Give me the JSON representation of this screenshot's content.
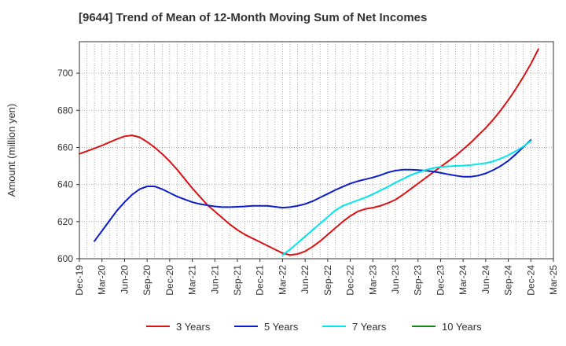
{
  "chart_data": {
    "type": "line",
    "title": "[9644]  Trend of Mean of 12-Month Moving Sum of Net Incomes",
    "xlabel": "",
    "ylabel": "Amount (million yen)",
    "ylim": [
      600,
      717
    ],
    "yticks": [
      600,
      620,
      640,
      660,
      680,
      700
    ],
    "xlim": [
      "2019-12",
      "2025-03"
    ],
    "xticks": [
      "Dec-19",
      "Mar-20",
      "Jun-20",
      "Sep-20",
      "Dec-20",
      "Mar-21",
      "Jun-21",
      "Sep-21",
      "Dec-21",
      "Mar-22",
      "Jun-22",
      "Sep-22",
      "Dec-22",
      "Mar-23",
      "Jun-23",
      "Sep-23",
      "Dec-23",
      "Mar-24",
      "Jun-24",
      "Sep-24",
      "Dec-24",
      "Mar-25"
    ],
    "grid": true,
    "legend_position": "bottom",
    "series": [
      {
        "name": "3 Years",
        "color": "#dd1111",
        "points": [
          [
            "2019-12",
            656.5
          ],
          [
            "2020-01",
            658
          ],
          [
            "2020-02",
            659.5
          ],
          [
            "2020-03",
            661
          ],
          [
            "2020-04",
            662.8
          ],
          [
            "2020-05",
            664.5
          ],
          [
            "2020-06",
            666
          ],
          [
            "2020-07",
            666.5
          ],
          [
            "2020-08",
            665.5
          ],
          [
            "2020-09",
            663
          ],
          [
            "2020-10",
            660
          ],
          [
            "2020-11",
            656.5
          ],
          [
            "2020-12",
            652.5
          ],
          [
            "2021-01",
            648
          ],
          [
            "2021-02",
            643
          ],
          [
            "2021-03",
            638
          ],
          [
            "2021-04",
            633.5
          ],
          [
            "2021-05",
            629
          ],
          [
            "2021-06",
            625.5
          ],
          [
            "2021-07",
            622
          ],
          [
            "2021-08",
            618.5
          ],
          [
            "2021-09",
            615.5
          ],
          [
            "2021-10",
            613
          ],
          [
            "2021-11",
            611
          ],
          [
            "2021-12",
            609
          ],
          [
            "2022-01",
            607
          ],
          [
            "2022-02",
            605
          ],
          [
            "2022-03",
            603
          ],
          [
            "2022-04",
            602
          ],
          [
            "2022-05",
            602.5
          ],
          [
            "2022-06",
            604
          ],
          [
            "2022-07",
            606.5
          ],
          [
            "2022-08",
            609.5
          ],
          [
            "2022-09",
            613
          ],
          [
            "2022-10",
            616.5
          ],
          [
            "2022-11",
            620
          ],
          [
            "2022-12",
            623
          ],
          [
            "2023-01",
            625.5
          ],
          [
            "2023-02",
            626.8
          ],
          [
            "2023-03",
            627.5
          ],
          [
            "2023-04",
            628.5
          ],
          [
            "2023-05",
            630
          ],
          [
            "2023-06",
            631.8
          ],
          [
            "2023-07",
            634.5
          ],
          [
            "2023-08",
            637.5
          ],
          [
            "2023-09",
            640.5
          ],
          [
            "2023-10",
            643.5
          ],
          [
            "2023-11",
            646.5
          ],
          [
            "2023-12",
            649.5
          ],
          [
            "2024-01",
            652.5
          ],
          [
            "2024-02",
            655.5
          ],
          [
            "2024-03",
            659
          ],
          [
            "2024-04",
            662.5
          ],
          [
            "2024-05",
            666.5
          ],
          [
            "2024-06",
            670.5
          ],
          [
            "2024-07",
            675
          ],
          [
            "2024-08",
            680
          ],
          [
            "2024-09",
            685.5
          ],
          [
            "2024-10",
            691.5
          ],
          [
            "2024-11",
            698
          ],
          [
            "2024-12",
            705
          ],
          [
            "2025-01",
            713
          ]
        ]
      },
      {
        "name": "5 Years",
        "color": "#0a1ccc",
        "points": [
          [
            "2020-02",
            609.5
          ],
          [
            "2020-03",
            615
          ],
          [
            "2020-04",
            620.5
          ],
          [
            "2020-05",
            626
          ],
          [
            "2020-06",
            630.5
          ],
          [
            "2020-07",
            634.5
          ],
          [
            "2020-08",
            637.5
          ],
          [
            "2020-09",
            639
          ],
          [
            "2020-10",
            639
          ],
          [
            "2020-11",
            637.5
          ],
          [
            "2020-12",
            635.5
          ],
          [
            "2021-01",
            633.5
          ],
          [
            "2021-02",
            632
          ],
          [
            "2021-03",
            630.5
          ],
          [
            "2021-04",
            629.5
          ],
          [
            "2021-05",
            628.8
          ],
          [
            "2021-06",
            628.2
          ],
          [
            "2021-07",
            627.8
          ],
          [
            "2021-08",
            627.8
          ],
          [
            "2021-09",
            628
          ],
          [
            "2021-10",
            628.2
          ],
          [
            "2021-11",
            628.5
          ],
          [
            "2021-12",
            628.5
          ],
          [
            "2022-01",
            628.5
          ],
          [
            "2022-02",
            628
          ],
          [
            "2022-03",
            627.5
          ],
          [
            "2022-04",
            627.8
          ],
          [
            "2022-05",
            628.5
          ],
          [
            "2022-06",
            629.5
          ],
          [
            "2022-07",
            631
          ],
          [
            "2022-08",
            633
          ],
          [
            "2022-09",
            635
          ],
          [
            "2022-10",
            637
          ],
          [
            "2022-11",
            638.8
          ],
          [
            "2022-12",
            640.5
          ],
          [
            "2023-01",
            641.8
          ],
          [
            "2023-02",
            642.8
          ],
          [
            "2023-03",
            643.8
          ],
          [
            "2023-04",
            645
          ],
          [
            "2023-05",
            646.5
          ],
          [
            "2023-06",
            647.5
          ],
          [
            "2023-07",
            648
          ],
          [
            "2023-08",
            648
          ],
          [
            "2023-09",
            647.8
          ],
          [
            "2023-10",
            647.5
          ],
          [
            "2023-11",
            647
          ],
          [
            "2023-12",
            646.3
          ],
          [
            "2024-01",
            645.5
          ],
          [
            "2024-02",
            644.8
          ],
          [
            "2024-03",
            644.2
          ],
          [
            "2024-04",
            644.2
          ],
          [
            "2024-05",
            644.8
          ],
          [
            "2024-06",
            646
          ],
          [
            "2024-07",
            647.8
          ],
          [
            "2024-08",
            650
          ],
          [
            "2024-09",
            652.8
          ],
          [
            "2024-10",
            656.3
          ],
          [
            "2024-11",
            660.2
          ],
          [
            "2024-12",
            664
          ]
        ]
      },
      {
        "name": "7 Years",
        "color": "#00e5ee",
        "points": [
          [
            "2022-03",
            602
          ],
          [
            "2022-04",
            605
          ],
          [
            "2022-05",
            608.5
          ],
          [
            "2022-06",
            612
          ],
          [
            "2022-07",
            615.5
          ],
          [
            "2022-08",
            619
          ],
          [
            "2022-09",
            622.5
          ],
          [
            "2022-10",
            626
          ],
          [
            "2022-11",
            628.5
          ],
          [
            "2022-12",
            630
          ],
          [
            "2023-01",
            631.5
          ],
          [
            "2023-02",
            633
          ],
          [
            "2023-03",
            634.8
          ],
          [
            "2023-04",
            636.8
          ],
          [
            "2023-05",
            638.8
          ],
          [
            "2023-06",
            641
          ],
          [
            "2023-07",
            643
          ],
          [
            "2023-08",
            645
          ],
          [
            "2023-09",
            646.5
          ],
          [
            "2023-10",
            647.8
          ],
          [
            "2023-11",
            648.8
          ],
          [
            "2023-12",
            649.5
          ],
          [
            "2024-01",
            649.8
          ],
          [
            "2024-02",
            650
          ],
          [
            "2024-03",
            650.2
          ],
          [
            "2024-04",
            650.5
          ],
          [
            "2024-05",
            651
          ],
          [
            "2024-06",
            651.5
          ],
          [
            "2024-07",
            652.5
          ],
          [
            "2024-08",
            654
          ],
          [
            "2024-09",
            655.8
          ],
          [
            "2024-10",
            658
          ],
          [
            "2024-11",
            660.5
          ],
          [
            "2024-12",
            663.5
          ]
        ]
      },
      {
        "name": "10 Years",
        "color": "#118811",
        "points": []
      }
    ]
  }
}
